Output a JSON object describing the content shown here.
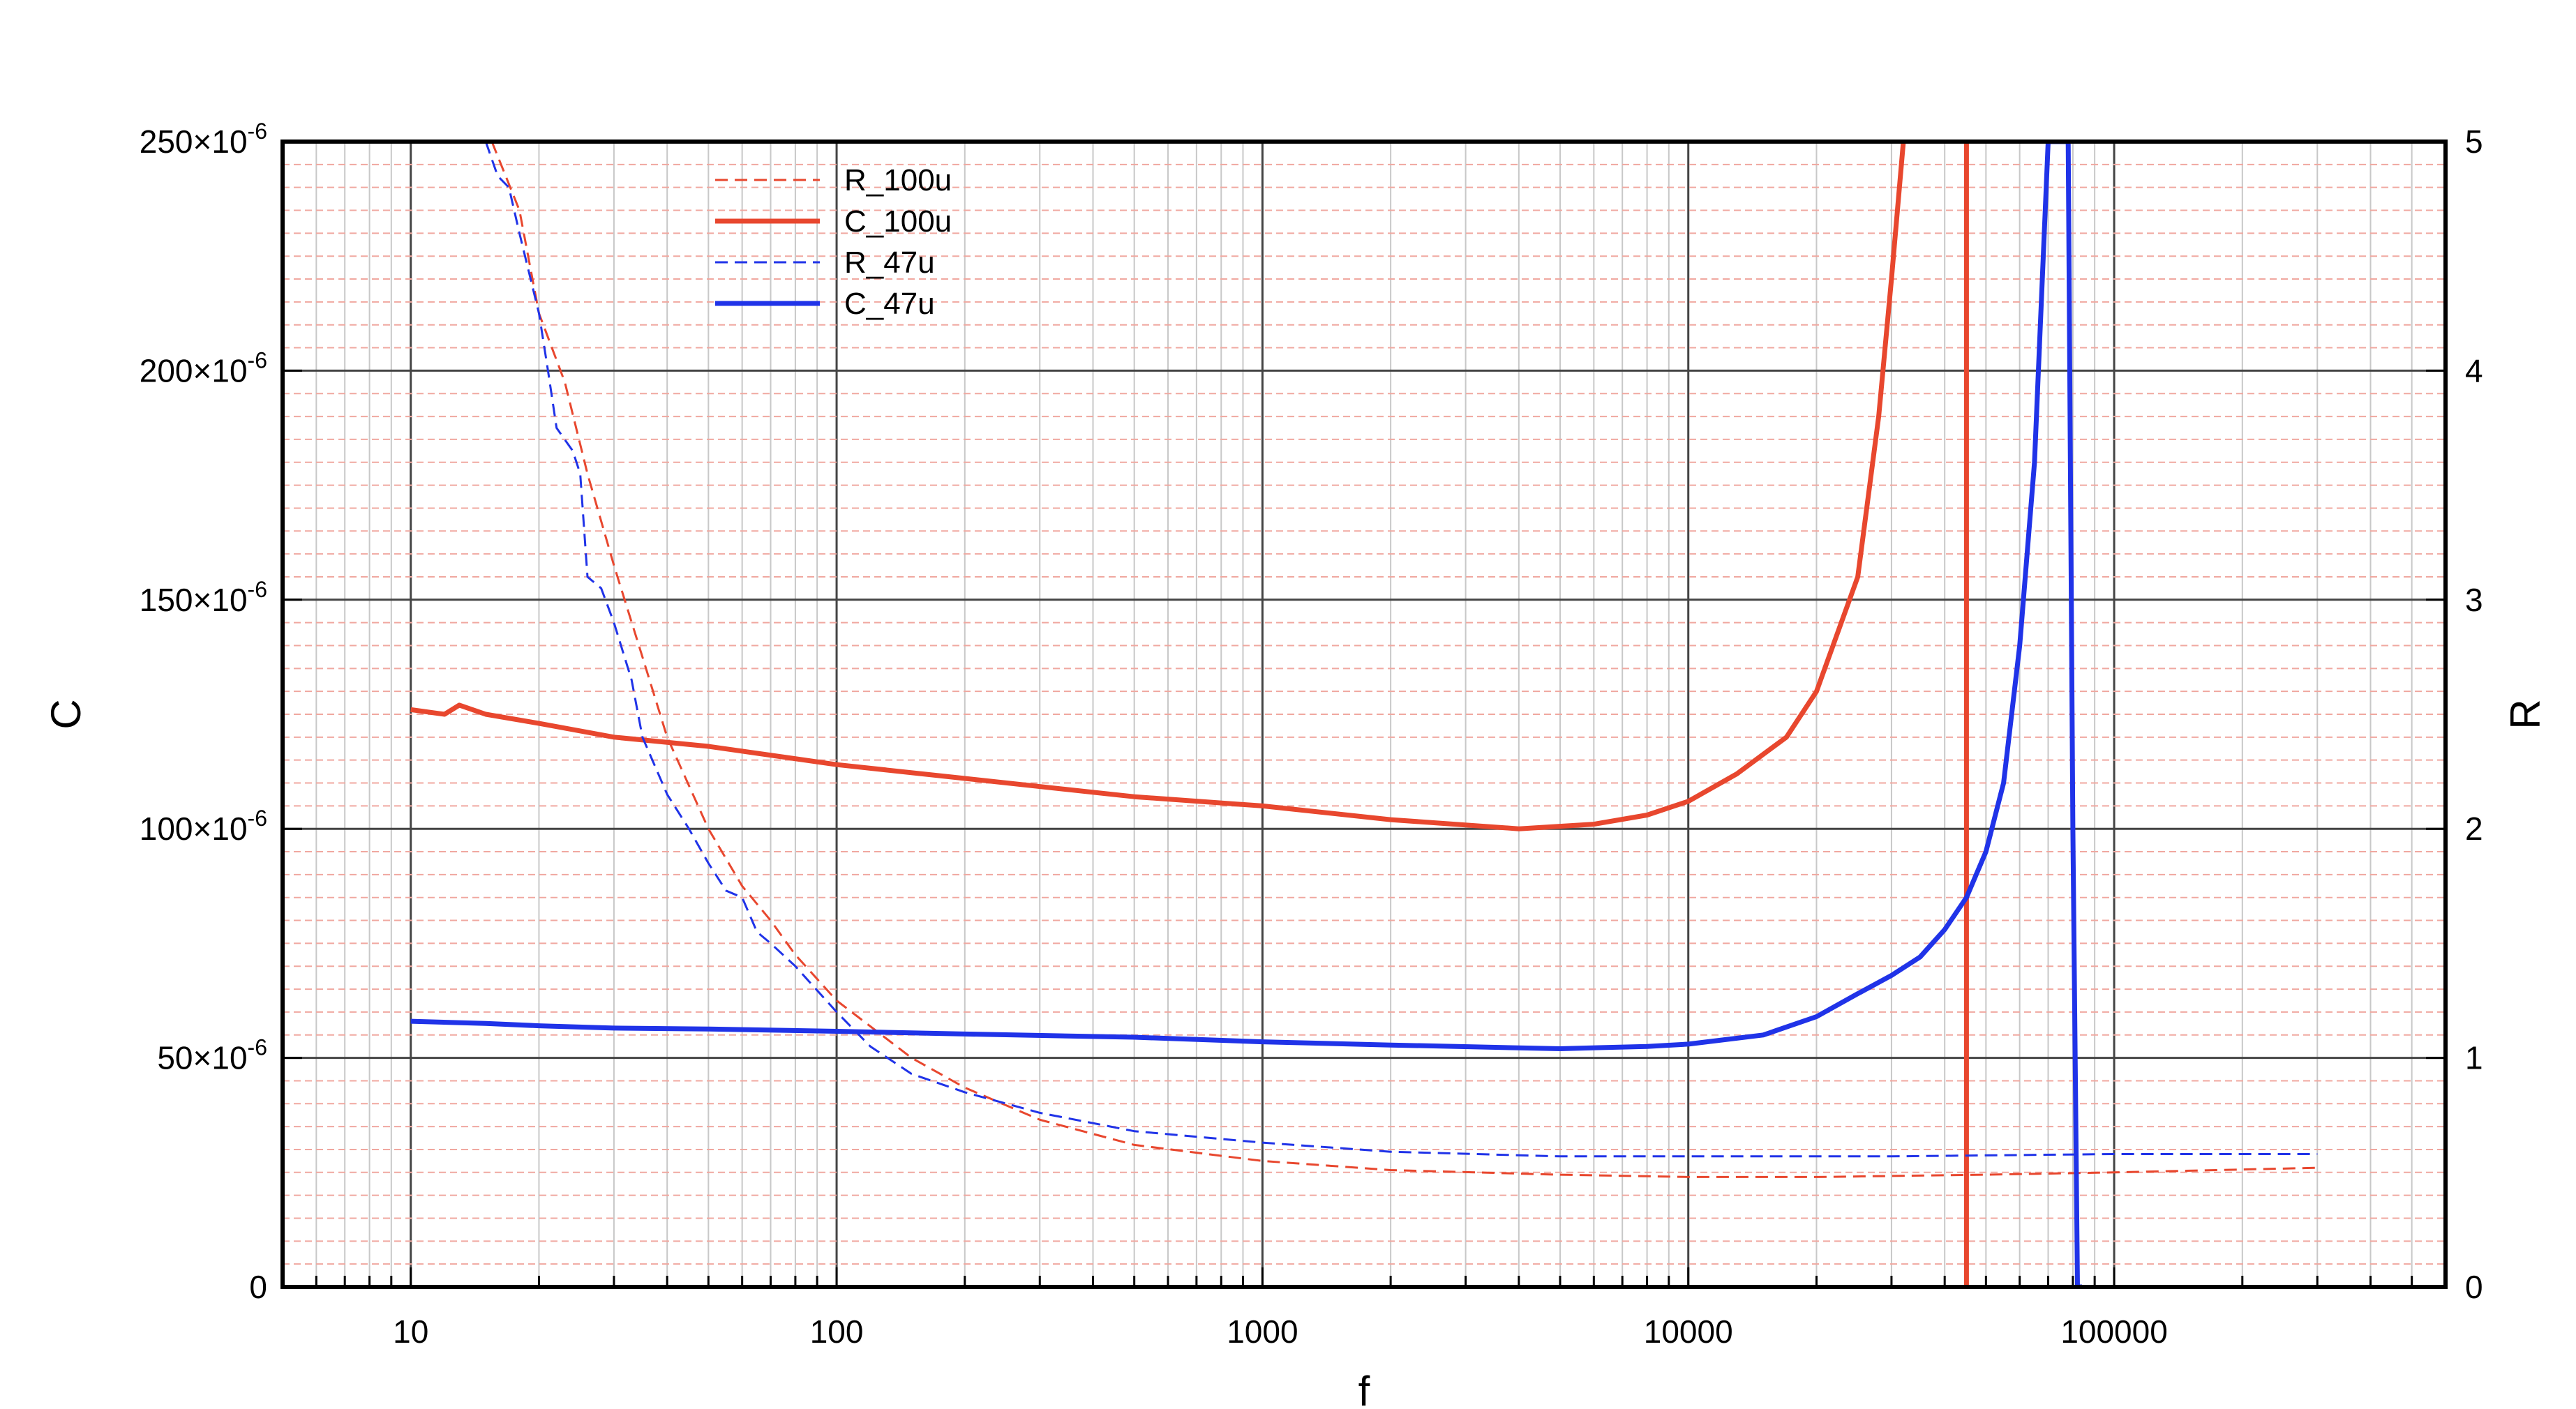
{
  "chart_data": {
    "type": "line",
    "title": "",
    "xlabel": "f",
    "ylabel_left": "C",
    "ylabel_right": "R",
    "x_scale": "log",
    "xlim": [
      5,
      600000
    ],
    "ylim_left": [
      0,
      0.00025
    ],
    "ylim_right": [
      0,
      5
    ],
    "x_tick_labels": [
      "10",
      "100",
      "1000",
      "10000",
      "100000"
    ],
    "y_left_tick_labels": [
      {
        "mant": "0",
        "exp": ""
      },
      {
        "mant": "50×10",
        "exp": "-6"
      },
      {
        "mant": "100×10",
        "exp": "-6"
      },
      {
        "mant": "150×10",
        "exp": "-6"
      },
      {
        "mant": "200×10",
        "exp": "-6"
      },
      {
        "mant": "250×10",
        "exp": "-6"
      }
    ],
    "y_right_tick_labels": [
      "0",
      "1",
      "2",
      "3",
      "4",
      "5"
    ],
    "grid": true,
    "legend_position": "top-left",
    "series": [
      {
        "name": "R_100u",
        "axis": "right",
        "color": "#e8472e",
        "dash": "dashed",
        "x": [
          15.5,
          18,
          20,
          23,
          26,
          30,
          35,
          40,
          50,
          60,
          70,
          80,
          100,
          150,
          200,
          300,
          500,
          1000,
          2000,
          5000,
          10000,
          20000,
          50000,
          100000,
          300000
        ],
        "y": [
          5.0,
          4.7,
          4.25,
          3.95,
          3.55,
          3.15,
          2.75,
          2.4,
          2.0,
          1.75,
          1.6,
          1.45,
          1.25,
          1.0,
          0.87,
          0.73,
          0.62,
          0.55,
          0.51,
          0.49,
          0.48,
          0.48,
          0.49,
          0.5,
          0.52
        ]
      },
      {
        "name": "C_100u",
        "axis": "left",
        "color": "#e8472e",
        "dash": "solid",
        "x": [
          10,
          12,
          13,
          15,
          20,
          30,
          50,
          100,
          200,
          500,
          1000,
          2000,
          4000,
          6000,
          8000,
          10000,
          13000,
          17000,
          20000,
          25000,
          28000,
          30000,
          32000
        ],
        "y": [
          0.000126,
          0.000125,
          0.000127,
          0.000125,
          0.000123,
          0.00012,
          0.000118,
          0.000114,
          0.000111,
          0.000107,
          0.000105,
          0.000102,
          0.0001,
          0.000101,
          0.000103,
          0.000106,
          0.000112,
          0.00012,
          0.00013,
          0.000155,
          0.00019,
          0.00022,
          0.00025
        ]
      },
      {
        "name": "R_47u",
        "axis": "right",
        "color": "#2033e8",
        "dash": "dashed",
        "x": [
          15,
          16,
          17,
          18,
          20,
          21,
          22,
          24,
          25,
          26,
          28,
          30,
          33,
          35,
          40,
          45,
          50,
          55,
          60,
          65,
          70,
          80,
          100,
          120,
          150,
          200,
          300,
          500,
          1000,
          2000,
          5000,
          10000,
          30000,
          100000,
          300000
        ],
        "y": [
          5.0,
          4.85,
          4.8,
          4.6,
          4.25,
          4.0,
          3.75,
          3.65,
          3.55,
          3.1,
          3.05,
          2.9,
          2.65,
          2.4,
          2.15,
          2.0,
          1.85,
          1.73,
          1.7,
          1.55,
          1.5,
          1.4,
          1.2,
          1.05,
          0.93,
          0.85,
          0.76,
          0.68,
          0.63,
          0.59,
          0.57,
          0.57,
          0.57,
          0.58,
          0.58
        ]
      },
      {
        "name": "C_47u",
        "axis": "left",
        "color": "#2033e8",
        "dash": "solid",
        "x": [
          10,
          15,
          20,
          30,
          50,
          100,
          200,
          500,
          1000,
          2000,
          5000,
          8000,
          10000,
          15000,
          20000,
          25000,
          30000,
          35000,
          40000,
          45000,
          50000,
          55000,
          60000,
          65000,
          70000,
          72000,
          75000,
          78000,
          80000,
          82000,
          84000
        ],
        "y": [
          5.8e-05,
          5.75e-05,
          5.7e-05,
          5.65e-05,
          5.63e-05,
          5.58e-05,
          5.52e-05,
          5.45e-05,
          5.35e-05,
          5.28e-05,
          5.2e-05,
          5.25e-05,
          5.3e-05,
          5.5e-05,
          5.9e-05,
          6.4e-05,
          6.8e-05,
          7.2e-05,
          7.8e-05,
          8.5e-05,
          9.5e-05,
          0.00011,
          0.00014,
          0.00018,
          0.00025,
          0.00025,
          0.00025,
          0.00025,
          0.0001,
          0.0,
          0.0
        ]
      }
    ],
    "vertical_lines": [
      {
        "x": 45000,
        "color": "#e8472e"
      }
    ]
  }
}
